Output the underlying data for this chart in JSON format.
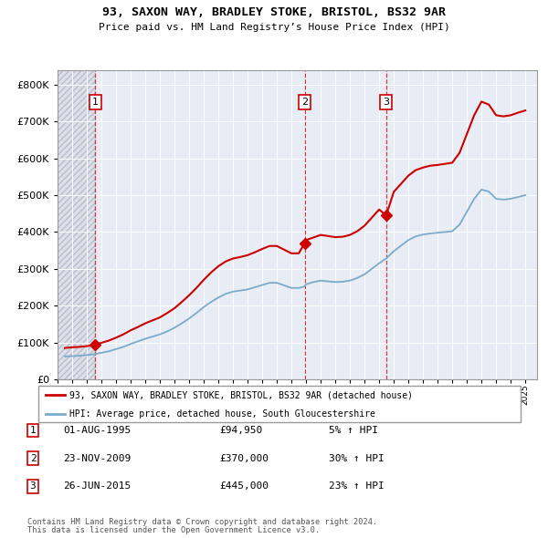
{
  "title1": "93, SAXON WAY, BRADLEY STOKE, BRISTOL, BS32 9AR",
  "title2": "Price paid vs. HM Land Registry’s House Price Index (HPI)",
  "ylim": [
    0,
    840000
  ],
  "yticks": [
    0,
    100000,
    200000,
    300000,
    400000,
    500000,
    600000,
    700000,
    800000
  ],
  "xlim_start": 1993.0,
  "xlim_end": 2025.8,
  "legend_line1": "93, SAXON WAY, BRADLEY STOKE, BRISTOL, BS32 9AR (detached house)",
  "legend_line2": "HPI: Average price, detached house, South Gloucestershire",
  "transactions": [
    {
      "label": "1",
      "date_num": 1995.58,
      "price": 94950
    },
    {
      "label": "2",
      "date_num": 2009.9,
      "price": 370000
    },
    {
      "label": "3",
      "date_num": 2015.48,
      "price": 445000
    }
  ],
  "transaction_labels": [
    {
      "num": "1",
      "date": "01-AUG-1995",
      "price": "£94,950",
      "pct": "5% ↑ HPI"
    },
    {
      "num": "2",
      "date": "23-NOV-2009",
      "price": "£370,000",
      "pct": "30% ↑ HPI"
    },
    {
      "num": "3",
      "date": "26-JUN-2015",
      "price": "£445,000",
      "pct": "23% ↑ HPI"
    }
  ],
  "footer1": "Contains HM Land Registry data © Crown copyright and database right 2024.",
  "footer2": "This data is licensed under the Open Government Licence v3.0.",
  "red_color": "#cc0000",
  "blue_color": "#7aaacc",
  "hpi_years": [
    1993.5,
    1994.0,
    1994.5,
    1995.0,
    1995.5,
    1995.58,
    1996.0,
    1996.5,
    1997.0,
    1997.5,
    1998.0,
    1998.5,
    1999.0,
    1999.5,
    2000.0,
    2000.5,
    2001.0,
    2001.5,
    2002.0,
    2002.5,
    2003.0,
    2003.5,
    2004.0,
    2004.5,
    2005.0,
    2005.5,
    2006.0,
    2006.5,
    2007.0,
    2007.5,
    2008.0,
    2008.5,
    2009.0,
    2009.5,
    2009.9,
    2010.0,
    2010.5,
    2011.0,
    2011.5,
    2012.0,
    2012.5,
    2013.0,
    2013.5,
    2014.0,
    2014.5,
    2015.0,
    2015.48,
    2016.0,
    2016.5,
    2017.0,
    2017.5,
    2018.0,
    2018.5,
    2019.0,
    2019.5,
    2020.0,
    2020.5,
    2021.0,
    2021.5,
    2022.0,
    2022.5,
    2023.0,
    2023.5,
    2024.0,
    2024.5,
    2025.0
  ],
  "hpi_values": [
    62000,
    63000,
    64000,
    66000,
    68000,
    69000,
    72000,
    76000,
    82000,
    88000,
    96000,
    103000,
    110000,
    116000,
    122000,
    130000,
    140000,
    152000,
    165000,
    180000,
    196000,
    210000,
    222000,
    232000,
    238000,
    241000,
    244000,
    250000,
    256000,
    262000,
    262000,
    255000,
    248000,
    248000,
    252000,
    258000,
    264000,
    268000,
    266000,
    264000,
    265000,
    268000,
    275000,
    285000,
    300000,
    315000,
    328000,
    348000,
    363000,
    378000,
    388000,
    393000,
    396000,
    398000,
    400000,
    402000,
    420000,
    455000,
    490000,
    515000,
    510000,
    490000,
    488000,
    490000,
    495000,
    500000
  ],
  "prop_years": [
    1993.5,
    1994.0,
    1994.5,
    1995.0,
    1995.5,
    1995.58,
    1996.0,
    1996.5,
    1997.0,
    1997.5,
    1998.0,
    1998.5,
    1999.0,
    1999.5,
    2000.0,
    2000.5,
    2001.0,
    2001.5,
    2002.0,
    2002.5,
    2003.0,
    2003.5,
    2004.0,
    2004.5,
    2005.0,
    2005.5,
    2006.0,
    2006.5,
    2007.0,
    2007.5,
    2008.0,
    2008.5,
    2009.0,
    2009.5,
    2009.9,
    2010.0,
    2010.5,
    2011.0,
    2011.5,
    2012.0,
    2012.5,
    2013.0,
    2013.5,
    2014.0,
    2014.5,
    2015.0,
    2015.48,
    2016.0,
    2016.5,
    2017.0,
    2017.5,
    2018.0,
    2018.5,
    2019.0,
    2019.5,
    2020.0,
    2020.5,
    2021.0,
    2021.5,
    2022.0,
    2022.5,
    2023.0,
    2023.5,
    2024.0,
    2024.5,
    2025.0
  ],
  "prop_values": [
    85000,
    87000,
    88000,
    90000,
    93000,
    94950,
    99000,
    105000,
    113000,
    122000,
    133000,
    142000,
    152000,
    160000,
    168000,
    180000,
    193000,
    210000,
    228000,
    248000,
    270000,
    290000,
    307000,
    320000,
    328000,
    332000,
    337000,
    345000,
    354000,
    362000,
    362000,
    352000,
    342000,
    342000,
    370000,
    378000,
    385000,
    392000,
    389000,
    386000,
    387000,
    392000,
    402000,
    417000,
    439000,
    461000,
    445000,
    509000,
    531000,
    553000,
    568000,
    575000,
    580000,
    582000,
    585000,
    588000,
    615000,
    666000,
    717000,
    754000,
    746000,
    717000,
    714000,
    717000,
    724000,
    730000
  ],
  "prop_peak_years": [
    2022.0,
    2022.3
  ],
  "prop_peak_values": [
    754000,
    760000
  ]
}
